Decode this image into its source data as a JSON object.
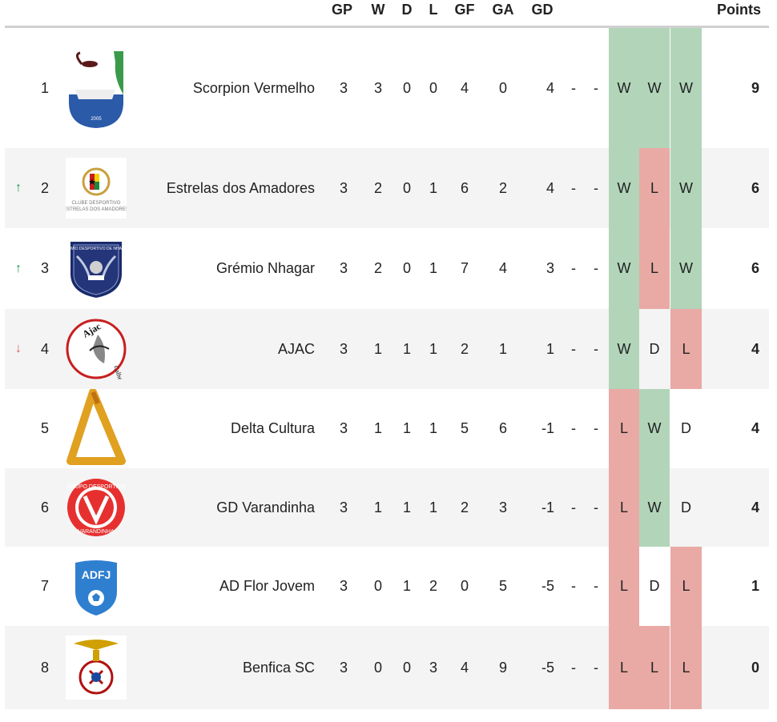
{
  "headers": {
    "gp": "GP",
    "w": "W",
    "d": "D",
    "l": "L",
    "gf": "GF",
    "ga": "GA",
    "gd": "GD",
    "points": "Points"
  },
  "colors": {
    "win": "#b2d5b9",
    "loss": "#e9aaa5",
    "draw": "transparent",
    "up": "#1a9a5a",
    "down": "#e06060"
  },
  "rows": [
    {
      "rank": "1",
      "move": "",
      "move_dir": "none",
      "logo_icon": "scorpion-crest-icon",
      "team": "Scorpion Vermelho",
      "gp": "3",
      "w": "3",
      "d": "0",
      "l": "0",
      "gf": "4",
      "ga": "0",
      "gd": "4",
      "d1": "-",
      "d2": "-",
      "f1": "W",
      "f2": "W",
      "f3": "W",
      "points": "9"
    },
    {
      "rank": "2",
      "move": "↑",
      "move_dir": "up",
      "logo_icon": "estrelas-crest-icon",
      "team": "Estrelas dos Amadores",
      "gp": "3",
      "w": "2",
      "d": "0",
      "l": "1",
      "gf": "6",
      "ga": "2",
      "gd": "4",
      "d1": "-",
      "d2": "-",
      "f1": "W",
      "f2": "L",
      "f3": "W",
      "points": "6"
    },
    {
      "rank": "3",
      "move": "↑",
      "move_dir": "up",
      "logo_icon": "gremio-shield-icon",
      "team": "Grémio Nhagar",
      "gp": "3",
      "w": "2",
      "d": "0",
      "l": "1",
      "gf": "7",
      "ga": "4",
      "gd": "3",
      "d1": "-",
      "d2": "-",
      "f1": "W",
      "f2": "L",
      "f3": "W",
      "points": "6"
    },
    {
      "rank": "4",
      "move": "↓",
      "move_dir": "down",
      "logo_icon": "ajac-roundel-icon",
      "team": "AJAC",
      "gp": "3",
      "w": "1",
      "d": "1",
      "l": "1",
      "gf": "2",
      "ga": "1",
      "gd": "1",
      "d1": "-",
      "d2": "-",
      "f1": "W",
      "f2": "D",
      "f3": "L",
      "points": "4"
    },
    {
      "rank": "5",
      "move": "",
      "move_dir": "none",
      "logo_icon": "delta-triangle-icon",
      "team": "Delta Cultura",
      "gp": "3",
      "w": "1",
      "d": "1",
      "l": "1",
      "gf": "5",
      "ga": "6",
      "gd": "-1",
      "d1": "-",
      "d2": "-",
      "f1": "L",
      "f2": "W",
      "f3": "D",
      "points": "4"
    },
    {
      "rank": "6",
      "move": "",
      "move_dir": "none",
      "logo_icon": "varandinha-roundel-icon",
      "team": "GD Varandinha",
      "gp": "3",
      "w": "1",
      "d": "1",
      "l": "1",
      "gf": "2",
      "ga": "3",
      "gd": "-1",
      "d1": "-",
      "d2": "-",
      "f1": "L",
      "f2": "W",
      "f3": "D",
      "points": "4"
    },
    {
      "rank": "7",
      "move": "",
      "move_dir": "none",
      "logo_icon": "adfj-crest-icon",
      "team": "AD Flor Jovem",
      "gp": "3",
      "w": "0",
      "d": "1",
      "l": "2",
      "gf": "0",
      "ga": "5",
      "gd": "-5",
      "d1": "-",
      "d2": "-",
      "f1": "L",
      "f2": "D",
      "f3": "L",
      "points": "1"
    },
    {
      "rank": "8",
      "move": "",
      "move_dir": "none",
      "logo_icon": "benfica-eagle-crest-icon",
      "team": "Benfica SC",
      "gp": "3",
      "w": "0",
      "d": "0",
      "l": "3",
      "gf": "4",
      "ga": "9",
      "gd": "-5",
      "d1": "-",
      "d2": "-",
      "f1": "L",
      "f2": "L",
      "f3": "L",
      "points": "0"
    }
  ]
}
